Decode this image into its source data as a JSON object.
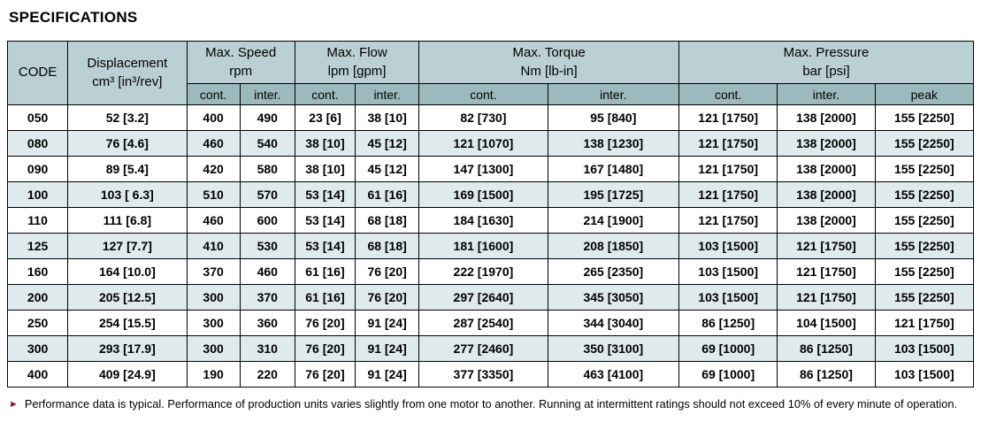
{
  "page": {
    "title": "SPECIFICATIONS",
    "footnote_marker": "►",
    "footnote": "Performance data is typical. Performance of production units varies slightly from one motor to another. Running at intermittent ratings should not exceed 10% of every minute of operation."
  },
  "table": {
    "header": {
      "code": "CODE",
      "displacement_line1": "Displacement",
      "displacement_line2": "cm³ [in³/rev]",
      "max_speed_line1": "Max. Speed",
      "max_speed_line2": "rpm",
      "max_flow_line1": "Max. Flow",
      "max_flow_line2": "lpm [gpm]",
      "max_torque_line1": "Max. Torque",
      "max_torque_line2": "Nm [lb-in]",
      "max_pressure_line1": "Max. Pressure",
      "max_pressure_line2": "bar [psi]"
    },
    "subheaders": [
      "cont.",
      "inter.",
      "cont.",
      "inter.",
      "cont.",
      "inter.",
      "cont.",
      "inter.",
      "peak"
    ],
    "rows": [
      [
        "050",
        "52 [3.2]",
        "400",
        "490",
        "23 [6]",
        "38 [10]",
        "82 [730]",
        "95 [840]",
        "121 [1750]",
        "138 [2000]",
        "155 [2250]"
      ],
      [
        "080",
        "76 [4.6]",
        "460",
        "540",
        "38 [10]",
        "45 [12]",
        "121 [1070]",
        "138 [1230]",
        "121 [1750]",
        "138 [2000]",
        "155 [2250]"
      ],
      [
        "090",
        "89 [5.4]",
        "420",
        "580",
        "38 [10]",
        "45 [12]",
        "147 [1300]",
        "167 [1480]",
        "121 [1750]",
        "138 [2000]",
        "155 [2250]"
      ],
      [
        "100",
        "103 [ 6.3]",
        "510",
        "570",
        "53 [14]",
        "61 [16]",
        "169 [1500]",
        "195 [1725]",
        "121 [1750]",
        "138 [2000]",
        "155 [2250]"
      ],
      [
        "110",
        "111 [6.8]",
        "460",
        "600",
        "53 [14]",
        "68 [18]",
        "184 [1630]",
        "214 [1900]",
        "121 [1750]",
        "138 [2000]",
        "155 [2250]"
      ],
      [
        "125",
        "127 [7.7]",
        "410",
        "530",
        "53 [14]",
        "68 [18]",
        "181 [1600]",
        "208 [1850]",
        "103 [1500]",
        "121 [1750]",
        "155 [2250]"
      ],
      [
        "160",
        "164 [10.0]",
        "370",
        "460",
        "61 [16]",
        "76 [20]",
        "222 [1970]",
        "265 [2350]",
        "103 [1500]",
        "121 [1750]",
        "155 [2250]"
      ],
      [
        "200",
        "205 [12.5]",
        "300",
        "370",
        "61 [16]",
        "76 [20]",
        "297 [2640]",
        "345 [3050]",
        "103 [1500]",
        "121 [1750]",
        "155 [2250]"
      ],
      [
        "250",
        "254 [15.5]",
        "300",
        "360",
        "76 [20]",
        "91 [24]",
        "287 [2540]",
        "344 [3040]",
        "86 [1250]",
        "104 [1500]",
        "121 [1750]"
      ],
      [
        "300",
        "293 [17.9]",
        "300",
        "310",
        "76 [20]",
        "91 [24]",
        "277 [2460]",
        "350 [3100]",
        "69 [1000]",
        "86 [1250]",
        "103 [1500]"
      ],
      [
        "400",
        "409 [24.9]",
        "190",
        "220",
        "76 [20]",
        "91 [24]",
        "377 [3350]",
        "463 [4100]",
        "69 [1000]",
        "86 [1250]",
        "103 [1500]"
      ]
    ]
  },
  "colors": {
    "header_bg": "#bad0d4",
    "subheader_bg": "#9cb9be",
    "row_alt_bg": "#dfeaec",
    "marker_color": "#8e1b1e"
  }
}
